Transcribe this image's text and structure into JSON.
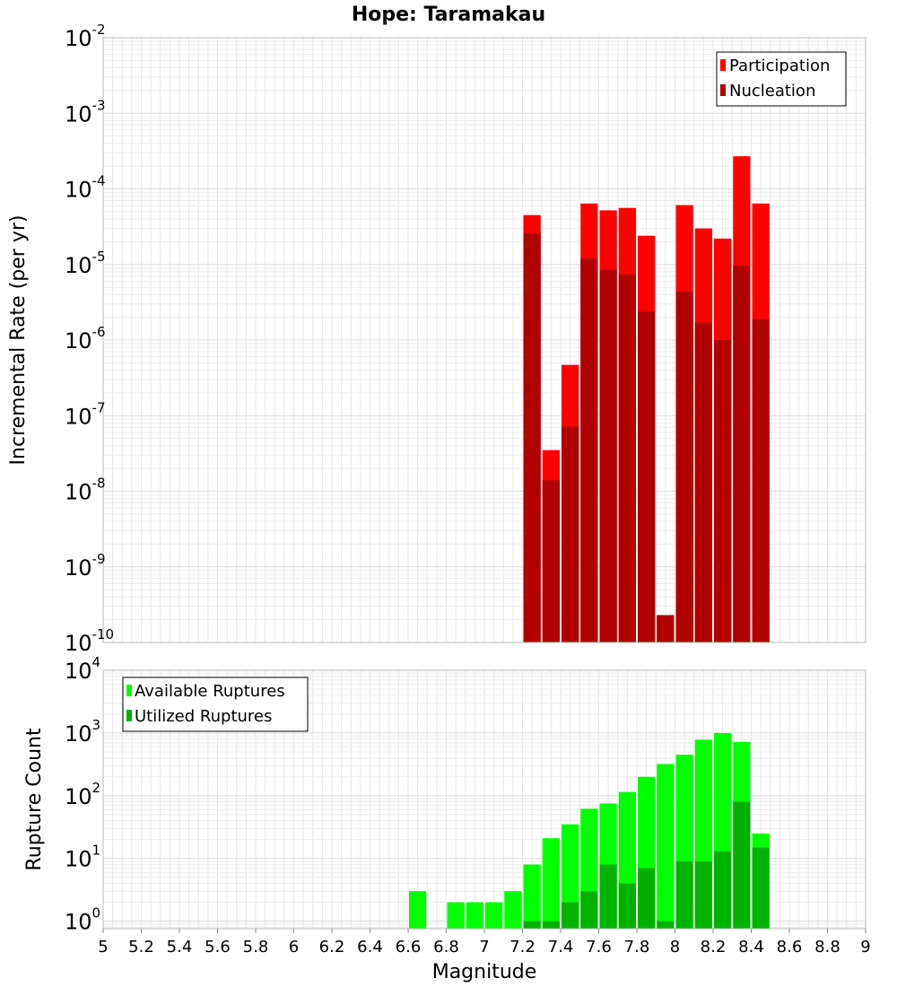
{
  "chart_data": {
    "title": "Hope: Taramakau",
    "xlabel": "Magnitude",
    "xlim": [
      5,
      9
    ],
    "x_ticks": [
      "5",
      "5.2",
      "5.4",
      "5.6",
      "5.8",
      "6",
      "6.2",
      "6.4",
      "6.6",
      "6.8",
      "7",
      "7.2",
      "7.4",
      "7.6",
      "7.8",
      "8",
      "8.2",
      "8.4",
      "8.6",
      "8.8",
      "9"
    ],
    "bin_width": 0.1,
    "panels": [
      {
        "type": "bar",
        "ylabel": "Incremental Rate (per yr)",
        "yscale": "log",
        "ylim_exp": [
          -10,
          -2
        ],
        "ytick_exponents": [
          -10,
          -9,
          -8,
          -7,
          -6,
          -5,
          -4,
          -3,
          -2
        ],
        "grid": true,
        "legend_position": "top-right",
        "series": [
          {
            "name": "Participation",
            "color": "#ff0000",
            "points": [
              {
                "x": 7.25,
                "y": 4.5e-05
              },
              {
                "x": 7.35,
                "y": 3.5e-08
              },
              {
                "x": 7.45,
                "y": 4.7e-07
              },
              {
                "x": 7.55,
                "y": 6.4e-05
              },
              {
                "x": 7.65,
                "y": 5.2e-05
              },
              {
                "x": 7.75,
                "y": 5.6e-05
              },
              {
                "x": 7.85,
                "y": 2.4e-05
              },
              {
                "x": 7.95,
                "y": 2.3e-10
              },
              {
                "x": 8.05,
                "y": 6.1e-05
              },
              {
                "x": 8.15,
                "y": 3e-05
              },
              {
                "x": 8.25,
                "y": 2.2e-05
              },
              {
                "x": 8.35,
                "y": 0.00027
              },
              {
                "x": 8.45,
                "y": 6.4e-05
              }
            ]
          },
          {
            "name": "Nucleation",
            "color": "#b00000",
            "points": [
              {
                "x": 7.25,
                "y": 2.6e-05
              },
              {
                "x": 7.35,
                "y": 1.4e-08
              },
              {
                "x": 7.45,
                "y": 7.2e-08
              },
              {
                "x": 7.55,
                "y": 1.2e-05
              },
              {
                "x": 7.65,
                "y": 8.6e-06
              },
              {
                "x": 7.75,
                "y": 7.4e-06
              },
              {
                "x": 7.85,
                "y": 2.4e-06
              },
              {
                "x": 7.95,
                "y": 2.3e-10
              },
              {
                "x": 8.05,
                "y": 4.4e-06
              },
              {
                "x": 8.15,
                "y": 1.7e-06
              },
              {
                "x": 8.25,
                "y": 1e-06
              },
              {
                "x": 8.35,
                "y": 9.6e-06
              },
              {
                "x": 8.45,
                "y": 1.9e-06
              }
            ]
          }
        ]
      },
      {
        "type": "bar",
        "ylabel": "Rupture Count",
        "yscale": "log",
        "ylim_exp": [
          -0.12,
          4
        ],
        "ytick_exponents": [
          0,
          1,
          2,
          3,
          4
        ],
        "grid": true,
        "legend_position": "top-left",
        "series": [
          {
            "name": "Available Ruptures",
            "color": "#00ff00",
            "points": [
              {
                "x": 6.65,
                "y": 3
              },
              {
                "x": 6.85,
                "y": 2
              },
              {
                "x": 6.95,
                "y": 2
              },
              {
                "x": 7.05,
                "y": 2
              },
              {
                "x": 7.15,
                "y": 3
              },
              {
                "x": 7.25,
                "y": 8
              },
              {
                "x": 7.35,
                "y": 21
              },
              {
                "x": 7.45,
                "y": 35
              },
              {
                "x": 7.55,
                "y": 62
              },
              {
                "x": 7.65,
                "y": 75
              },
              {
                "x": 7.75,
                "y": 115
              },
              {
                "x": 7.85,
                "y": 200
              },
              {
                "x": 7.95,
                "y": 320
              },
              {
                "x": 8.05,
                "y": 450
              },
              {
                "x": 8.15,
                "y": 780
              },
              {
                "x": 8.25,
                "y": 1000
              },
              {
                "x": 8.35,
                "y": 720
              },
              {
                "x": 8.45,
                "y": 25
              }
            ]
          },
          {
            "name": "Utilized Ruptures",
            "color": "#00b200",
            "points": [
              {
                "x": 7.25,
                "y": 1
              },
              {
                "x": 7.35,
                "y": 1
              },
              {
                "x": 7.45,
                "y": 2
              },
              {
                "x": 7.55,
                "y": 3
              },
              {
                "x": 7.65,
                "y": 8
              },
              {
                "x": 7.75,
                "y": 4
              },
              {
                "x": 7.85,
                "y": 7
              },
              {
                "x": 7.95,
                "y": 1
              },
              {
                "x": 8.05,
                "y": 9
              },
              {
                "x": 8.15,
                "y": 9
              },
              {
                "x": 8.25,
                "y": 13
              },
              {
                "x": 8.35,
                "y": 80
              },
              {
                "x": 8.45,
                "y": 15
              }
            ]
          }
        ]
      }
    ]
  }
}
